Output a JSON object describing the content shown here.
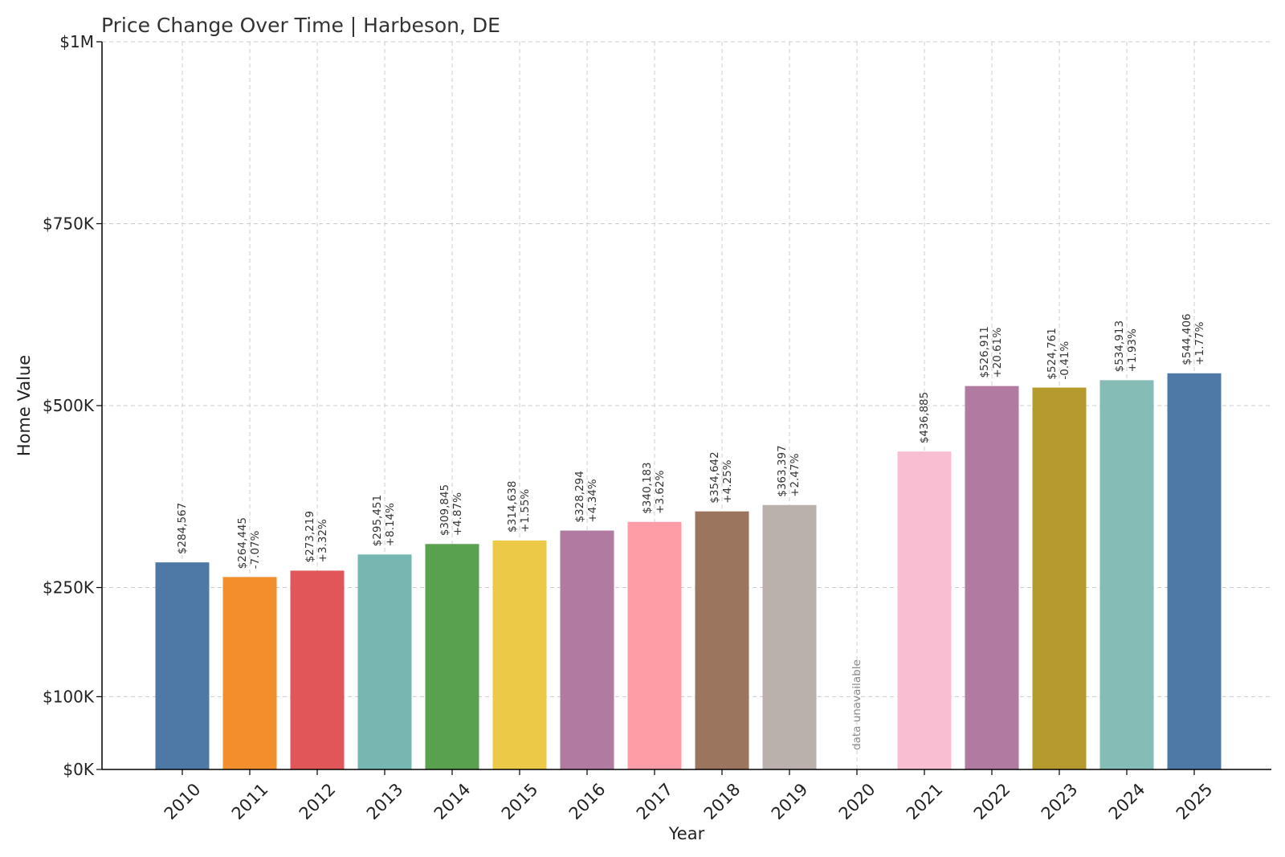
{
  "chart_data": {
    "type": "bar",
    "title": "Price Change Over Time | Harbeson, DE",
    "xlabel": "Year",
    "ylabel": "Home Value",
    "categories": [
      "2010",
      "2011",
      "2012",
      "2013",
      "2014",
      "2015",
      "2016",
      "2017",
      "2018",
      "2019",
      "2020",
      "2021",
      "2022",
      "2023",
      "2024",
      "2025"
    ],
    "values": [
      284567,
      264445,
      273219,
      295451,
      309845,
      314638,
      328294,
      340183,
      354642,
      363397,
      null,
      436885,
      526911,
      524761,
      534913,
      544406
    ],
    "value_labels": [
      "$284,567",
      "$264,445",
      "$273,219",
      "$295,451",
      "$309,845",
      "$314,638",
      "$328,294",
      "$340,183",
      "$354,642",
      "$363,397",
      "",
      "$436,885",
      "$526,911",
      "$524,761",
      "$534,913",
      "$544,406"
    ],
    "change_labels": [
      "",
      "-7.07%",
      "+3.32%",
      "+8.14%",
      "+4.87%",
      "+1.55%",
      "+4.34%",
      "+3.62%",
      "+4.25%",
      "+2.47%",
      "",
      "",
      "+20.61%",
      "-0.41%",
      "+1.93%",
      "+1.77%"
    ],
    "missing_label": "data unavailable",
    "colors": [
      "#4e79a7",
      "#f28e2b",
      "#e15759",
      "#76b7b2",
      "#59a14f",
      "#edc948",
      "#b07aa1",
      "#ff9da7",
      "#9c755f",
      "#bab0ac",
      "#ffffff",
      "#f9bed2",
      "#b07aa1",
      "#b59a2d",
      "#86bcb6",
      "#4e79a7"
    ],
    "ylim": [
      0,
      1000000
    ],
    "yticks": [
      0,
      100000,
      250000,
      500000,
      750000,
      1000000
    ],
    "ytick_labels": [
      "$0K",
      "$100K",
      "$250K",
      "$500K",
      "$750K",
      "$1M"
    ],
    "grid": true,
    "legend": "none"
  }
}
